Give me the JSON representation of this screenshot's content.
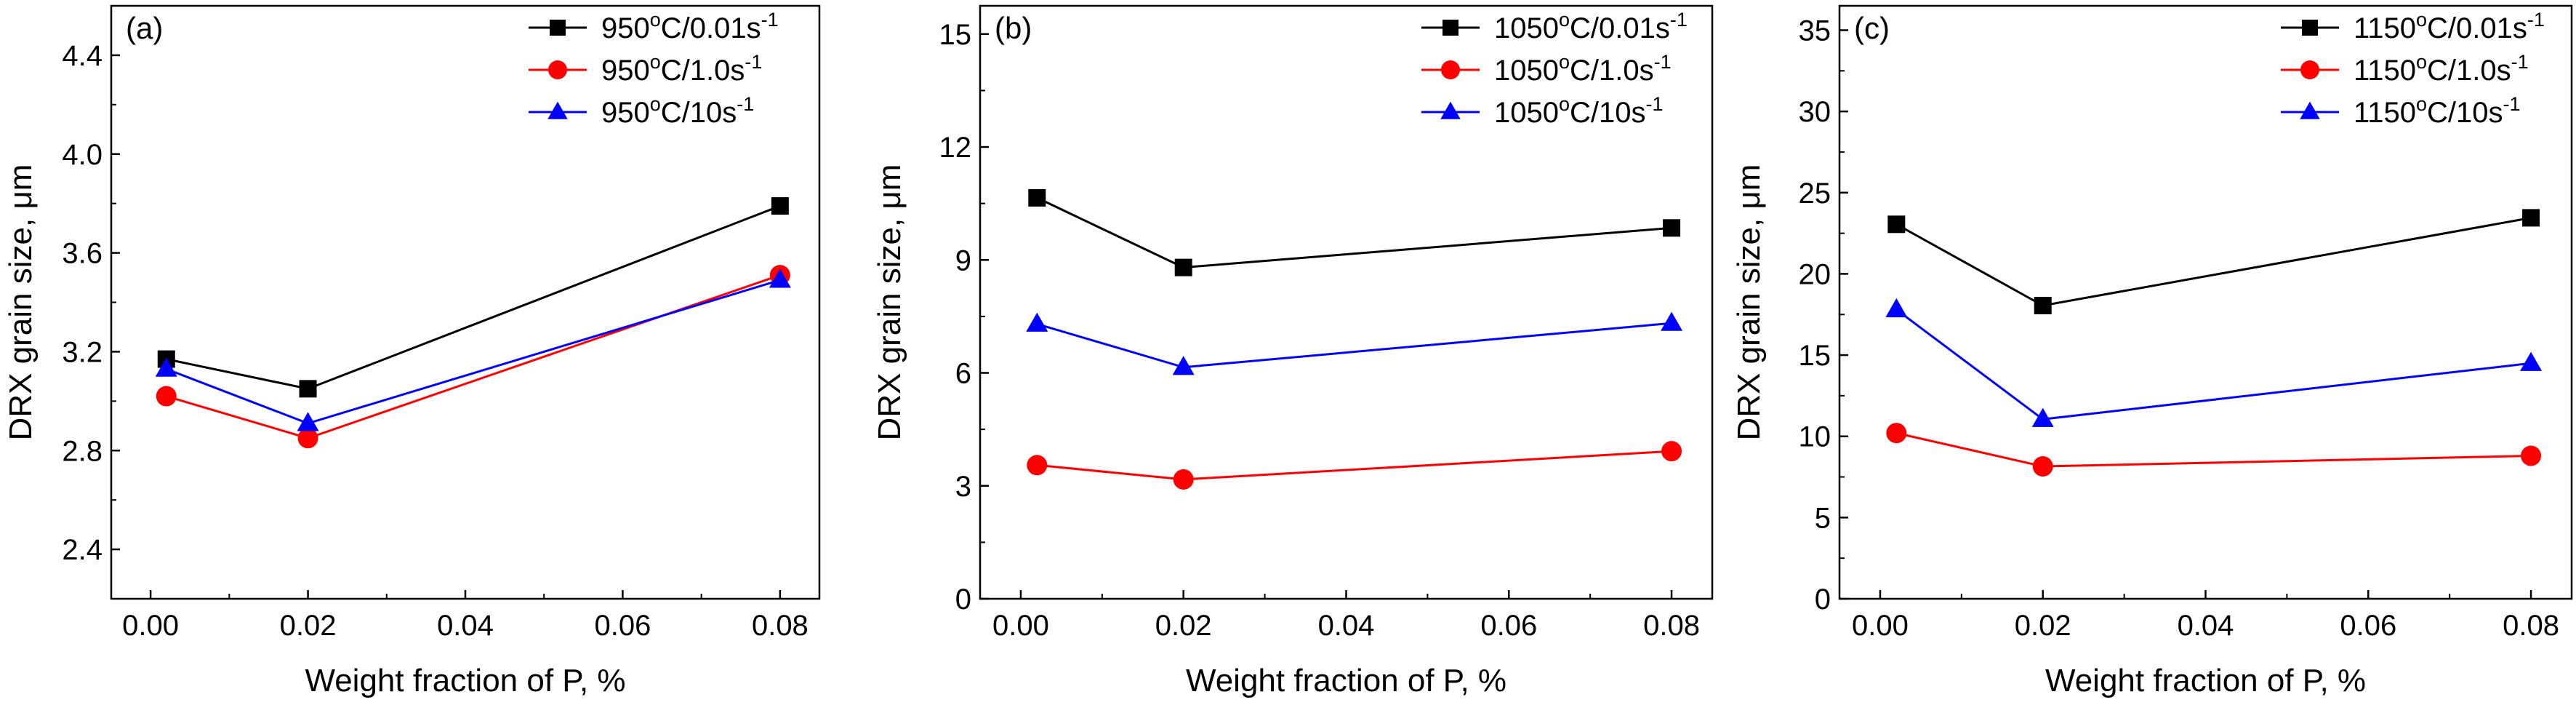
{
  "chart_data": [
    {
      "type": "line",
      "panel_label": "(a)",
      "xlabel": "Weight fraction of P, %",
      "ylabel": "DRX grain size, μm",
      "xlim": [
        -0.005,
        0.085
      ],
      "ylim": [
        2.2,
        4.6
      ],
      "xticks": [
        "0.00",
        "0.02",
        "0.04",
        "0.06",
        "0.08"
      ],
      "yticks": [
        "2.4",
        "2.8",
        "3.2",
        "3.6",
        "4.0",
        "4.4"
      ],
      "legend_position": "top-right",
      "series": [
        {
          "name": "950°C/0.01s-1",
          "temp": "950",
          "rate": "0.01",
          "color": "#000000",
          "marker": "square",
          "x": [
            0.002,
            0.02,
            0.08
          ],
          "y": [
            3.17,
            3.05,
            3.79
          ]
        },
        {
          "name": "950°C/1.0s-1",
          "temp": "950",
          "rate": "1.0",
          "color": "#ff0000",
          "marker": "circle",
          "x": [
            0.002,
            0.02,
            0.08
          ],
          "y": [
            3.02,
            2.85,
            3.51
          ]
        },
        {
          "name": "950°C/10s-1",
          "temp": "950",
          "rate": "10",
          "color": "#0000ff",
          "marker": "triangle",
          "x": [
            0.002,
            0.02,
            0.08
          ],
          "y": [
            3.13,
            2.91,
            3.49
          ]
        }
      ]
    },
    {
      "type": "line",
      "panel_label": "(b)",
      "xlabel": "Weight fraction of P, %",
      "ylabel": "DRX grain size, μm",
      "xlim": [
        -0.005,
        0.085
      ],
      "ylim": [
        0,
        15.75
      ],
      "xticks": [
        "0.00",
        "0.02",
        "0.04",
        "0.06",
        "0.08"
      ],
      "yticks": [
        "0",
        "3",
        "6",
        "9",
        "12",
        "15"
      ],
      "legend_position": "top-right",
      "series": [
        {
          "name": "1050°C/0.01s-1",
          "temp": "1050",
          "rate": "0.01",
          "color": "#000000",
          "marker": "square",
          "x": [
            0.002,
            0.02,
            0.08
          ],
          "y": [
            10.65,
            8.8,
            9.85
          ]
        },
        {
          "name": "1050°C/1.0s-1",
          "temp": "1050",
          "rate": "1.0",
          "color": "#ff0000",
          "marker": "circle",
          "x": [
            0.002,
            0.02,
            0.08
          ],
          "y": [
            3.55,
            3.17,
            3.92
          ]
        },
        {
          "name": "1050°C/10s-1",
          "temp": "1050",
          "rate": "10",
          "color": "#0000ff",
          "marker": "triangle",
          "x": [
            0.002,
            0.02,
            0.08
          ],
          "y": [
            7.3,
            6.15,
            7.32
          ]
        }
      ]
    },
    {
      "type": "line",
      "panel_label": "(c)",
      "xlabel": "Weight fraction of P, %",
      "ylabel": "DRX grain size, μm",
      "xlim": [
        -0.005,
        0.085
      ],
      "ylim": [
        0,
        36.5
      ],
      "xticks": [
        "0.00",
        "0.02",
        "0.04",
        "0.06",
        "0.08"
      ],
      "yticks": [
        "0",
        "5",
        "10",
        "15",
        "20",
        "25",
        "30",
        "35"
      ],
      "legend_position": "top-right",
      "series": [
        {
          "name": "1150°C/0.01s-1",
          "temp": "1150",
          "rate": "0.01",
          "color": "#000000",
          "marker": "square",
          "x": [
            0.002,
            0.02,
            0.08
          ],
          "y": [
            23.05,
            18.05,
            23.45
          ]
        },
        {
          "name": "1150°C/1.0s-1",
          "temp": "1150",
          "rate": "1.0",
          "color": "#ff0000",
          "marker": "circle",
          "x": [
            0.002,
            0.02,
            0.08
          ],
          "y": [
            10.2,
            8.15,
            8.8
          ]
        },
        {
          "name": "1150°C/10s-1",
          "temp": "1150",
          "rate": "10",
          "color": "#0000ff",
          "marker": "triangle",
          "x": [
            0.002,
            0.02,
            0.08
          ],
          "y": [
            17.8,
            11.05,
            14.5
          ]
        }
      ]
    }
  ]
}
